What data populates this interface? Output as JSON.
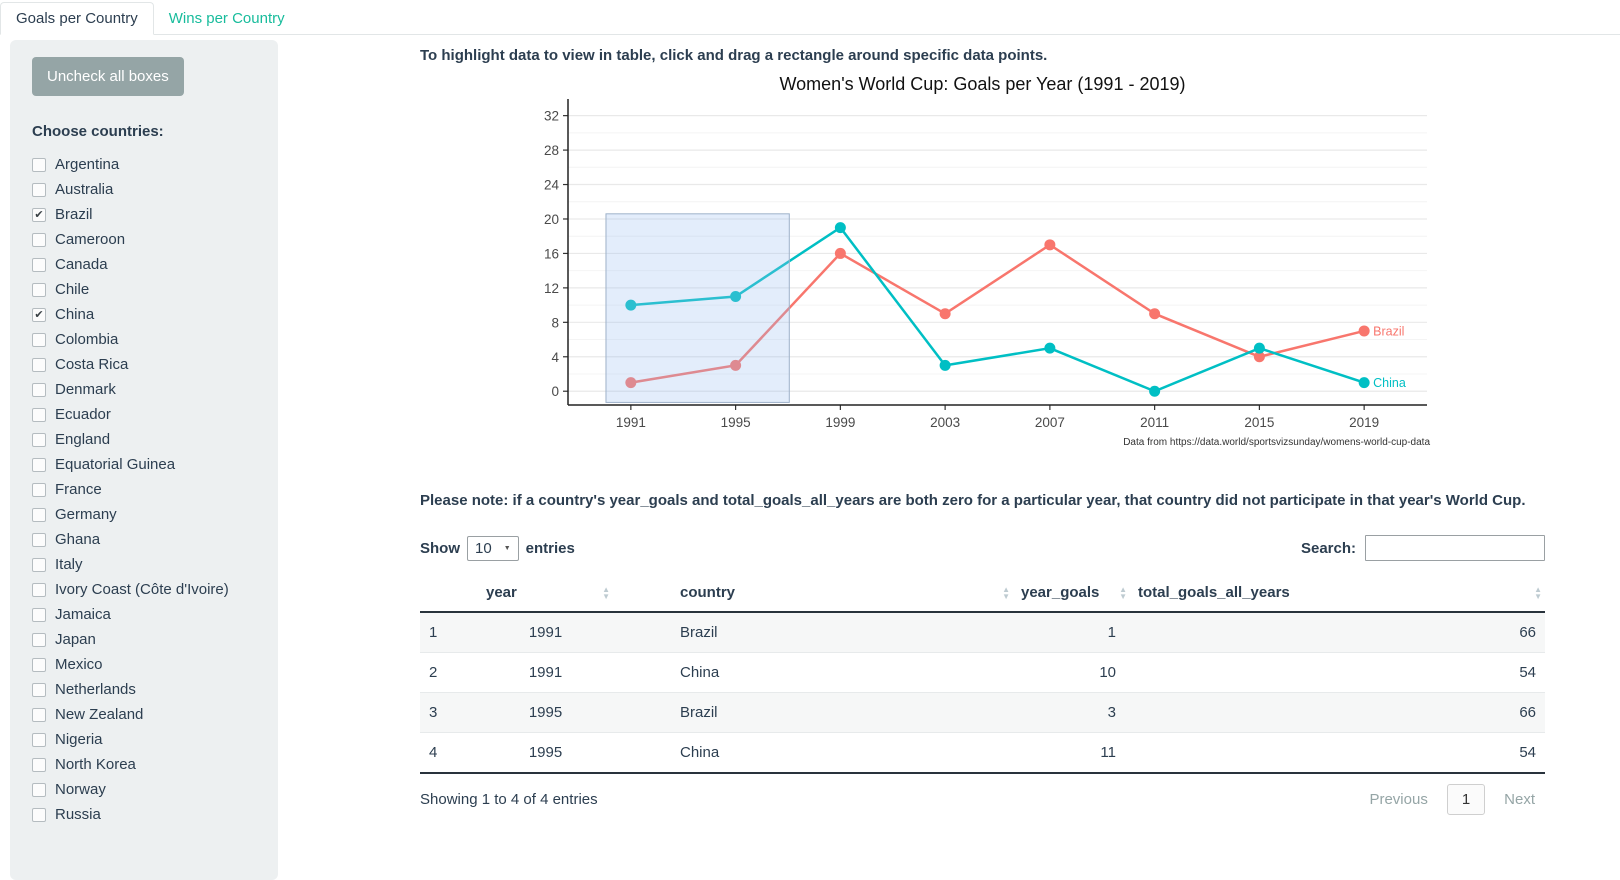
{
  "tabs": [
    {
      "label": "Goals per Country",
      "active": true
    },
    {
      "label": "Wins per Country",
      "active": false
    }
  ],
  "sidebar": {
    "uncheck_button": "Uncheck all boxes",
    "choose_label": "Choose countries:",
    "countries": [
      {
        "name": "Argentina",
        "checked": false
      },
      {
        "name": "Australia",
        "checked": false
      },
      {
        "name": "Brazil",
        "checked": true
      },
      {
        "name": "Cameroon",
        "checked": false
      },
      {
        "name": "Canada",
        "checked": false
      },
      {
        "name": "Chile",
        "checked": false
      },
      {
        "name": "China",
        "checked": true
      },
      {
        "name": "Colombia",
        "checked": false
      },
      {
        "name": "Costa Rica",
        "checked": false
      },
      {
        "name": "Denmark",
        "checked": false
      },
      {
        "name": "Ecuador",
        "checked": false
      },
      {
        "name": "England",
        "checked": false
      },
      {
        "name": "Equatorial Guinea",
        "checked": false
      },
      {
        "name": "France",
        "checked": false
      },
      {
        "name": "Germany",
        "checked": false
      },
      {
        "name": "Ghana",
        "checked": false
      },
      {
        "name": "Italy",
        "checked": false
      },
      {
        "name": "Ivory Coast (Côte d'Ivoire)",
        "checked": false
      },
      {
        "name": "Jamaica",
        "checked": false
      },
      {
        "name": "Japan",
        "checked": false
      },
      {
        "name": "Mexico",
        "checked": false
      },
      {
        "name": "Netherlands",
        "checked": false
      },
      {
        "name": "New Zealand",
        "checked": false
      },
      {
        "name": "Nigeria",
        "checked": false
      },
      {
        "name": "North Korea",
        "checked": false
      },
      {
        "name": "Norway",
        "checked": false
      },
      {
        "name": "Russia",
        "checked": false
      }
    ]
  },
  "main": {
    "instruction": "To highlight data to view in table, click and drag a rectangle around specific data points.",
    "note": "Please note: if a country's year_goals and total_goals_all_years are both zero for a particular year, that country did not participate in that year's World Cup."
  },
  "chart_data": {
    "type": "line",
    "title": "Women's World Cup: Goals per Year (1991 - 2019)",
    "caption": "Data from https://data.world/sportsvizsunday/womens-world-cup-data",
    "xlabel": "",
    "ylabel": "",
    "x": [
      1991,
      1995,
      1999,
      2003,
      2007,
      2011,
      2015,
      2019
    ],
    "series": [
      {
        "name": "Brazil",
        "color": "#F8766D",
        "values": [
          1,
          3,
          16,
          9,
          17,
          9,
          4,
          7
        ]
      },
      {
        "name": "China",
        "color": "#00BFC4",
        "values": [
          10,
          11,
          19,
          3,
          5,
          0,
          5,
          1
        ]
      }
    ],
    "yticks": [
      0,
      4,
      8,
      12,
      16,
      20,
      24,
      28,
      32
    ],
    "minor_step": 2,
    "ylim": [
      -1.6,
      33.7
    ],
    "xlim": [
      1988.6,
      2021.4
    ],
    "grid": "horizontal-only",
    "legend": "end-labels",
    "brush": {
      "x1": 1990.05,
      "x2": 1997.05,
      "y1": -1.3,
      "y2": 20.6,
      "fill": "#9cbff0",
      "stroke": "#9db1c9"
    }
  },
  "table": {
    "show_label": "Show",
    "page_length": "10",
    "entries_label": "entries",
    "search_label": "Search:",
    "search_value": "",
    "columns": [
      "",
      "year",
      "country",
      "year_goals",
      "total_goals_all_years"
    ],
    "rows": [
      [
        "1",
        "1991",
        "Brazil",
        "1",
        "66"
      ],
      [
        "2",
        "1991",
        "China",
        "10",
        "54"
      ],
      [
        "3",
        "1995",
        "Brazil",
        "3",
        "66"
      ],
      [
        "4",
        "1995",
        "China",
        "11",
        "54"
      ]
    ],
    "info": "Showing 1 to 4 of 4 entries",
    "pagination": {
      "previous": "Previous",
      "current": "1",
      "next": "Next"
    }
  }
}
